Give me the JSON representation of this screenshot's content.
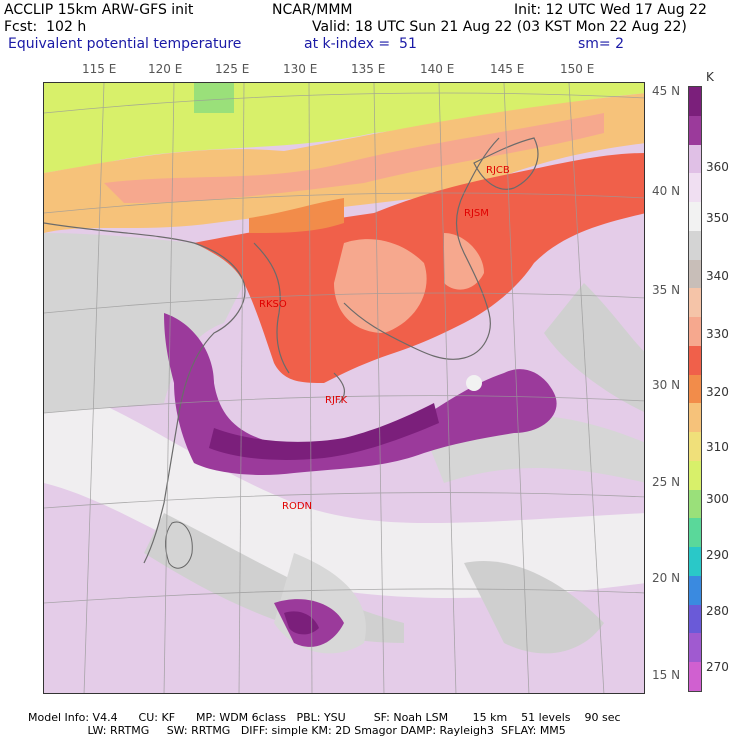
{
  "header": {
    "line1_left": "ACCLIP 15km ARW-GFS init",
    "line1_mid": "NCAR/MMM",
    "line1_right": "Init: 12 UTC Wed 17 Aug 22",
    "line2_left": "Fcst:  102 h",
    "line2_right": "Valid: 18 UTC Sun 21 Aug 22 (03 KST Mon 22 Aug 22)",
    "line3_field": "Equivalent potential temperature",
    "line3_level": "at k-index =  51",
    "line3_smooth": "sm= 2"
  },
  "lon_labels": [
    "115 E",
    "120 E",
    "125 E",
    "130 E",
    "135 E",
    "140 E",
    "145 E",
    "150 E"
  ],
  "lat_labels": [
    "45 N",
    "40 N",
    "35 N",
    "30 N",
    "25 N",
    "20 N",
    "15 N"
  ],
  "stations": [
    "RJCB",
    "RJSM",
    "RKSO",
    "RJFK",
    "RODN"
  ],
  "colorbar": {
    "unit": "K",
    "labels": [
      "360",
      "350",
      "340",
      "330",
      "320",
      "310",
      "300",
      "290",
      "280",
      "270"
    ],
    "colors": [
      "#7b1f7b",
      "#9b3a9b",
      "#e0c0e6",
      "#f0dff2",
      "#f2f2f2",
      "#d4d4d4",
      "#c8beb8",
      "#f5c4a8",
      "#f6a88e",
      "#f0604a",
      "#f28c4a",
      "#f6c27a",
      "#f0e07a",
      "#d8f06a",
      "#9ae07a",
      "#5ad89a",
      "#2ac8c8",
      "#3a8ae0",
      "#6a5ad8",
      "#a05ad0",
      "#d060d0"
    ]
  },
  "footer": {
    "line1": "Model Info: V4.4      CU: KF      MP: WDM 6class   PBL: YSU        SF: Noah LSM       15 km    51 levels    90 sec",
    "line2": "                 LW: RRTMG     SW: RRTMG   DIFF: simple KM: 2D Smagor DAMP: Rayleigh3  SFLAY: MM5"
  }
}
